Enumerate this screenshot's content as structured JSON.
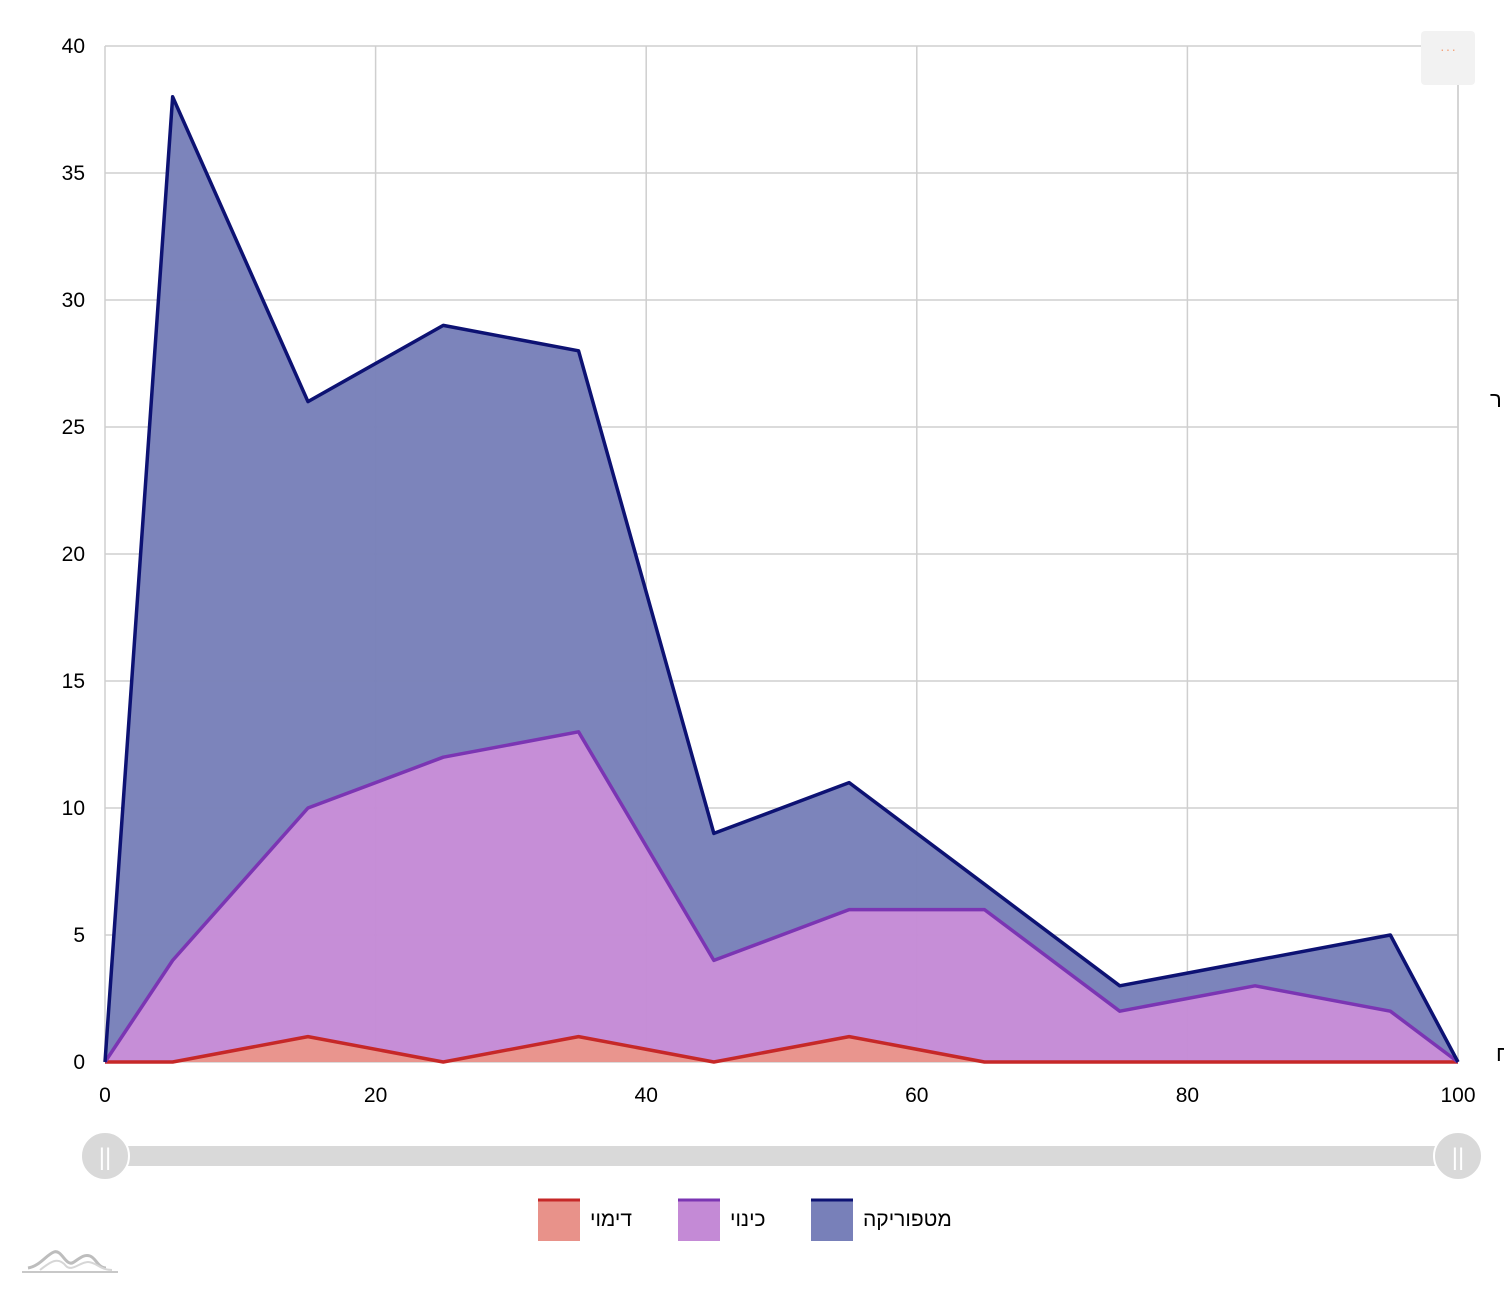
{
  "chart_data": {
    "type": "area",
    "stacked": true,
    "x": [
      0,
      5,
      15,
      25,
      35,
      45,
      55,
      65,
      75,
      85,
      95,
      100
    ],
    "series": [
      {
        "name": "דימוי",
        "color": "#e8928a",
        "line_color": "#c62828",
        "values": [
          0,
          0,
          1,
          0,
          1,
          0,
          1,
          0,
          0,
          0,
          0,
          0
        ]
      },
      {
        "name": "כינוי",
        "color": "#c48ad6",
        "line_color": "#7b35b3",
        "values": [
          0,
          4,
          9,
          12,
          12,
          4,
          5,
          6,
          2,
          3,
          2,
          0
        ]
      },
      {
        "name": "מטפוריקה",
        "color": "#7880b9",
        "line_color": "#0d1273",
        "values": [
          0,
          34,
          16,
          17,
          15,
          5,
          5,
          1,
          1,
          1,
          3,
          0
        ]
      }
    ],
    "xlim": [
      0,
      100
    ],
    "ylim": [
      0,
      40
    ],
    "x_ticks": [
      "0",
      "20",
      "40",
      "60",
      "80",
      "100"
    ],
    "y_ticks": [
      "0",
      "5",
      "10",
      "15",
      "20",
      "25",
      "30",
      "35",
      "40"
    ],
    "grid": true,
    "legend_position": "bottom",
    "xlabel": "",
    "ylabel": ""
  },
  "ui": {
    "menu_icon": "more-horizontal-icon",
    "menu_glyph": "···",
    "scrollbar_grip_glyph": "||",
    "logo_icon": "amcharts-logo-icon",
    "edge_text_right": "ר",
    "edge_text_bottom_right": "ח"
  }
}
